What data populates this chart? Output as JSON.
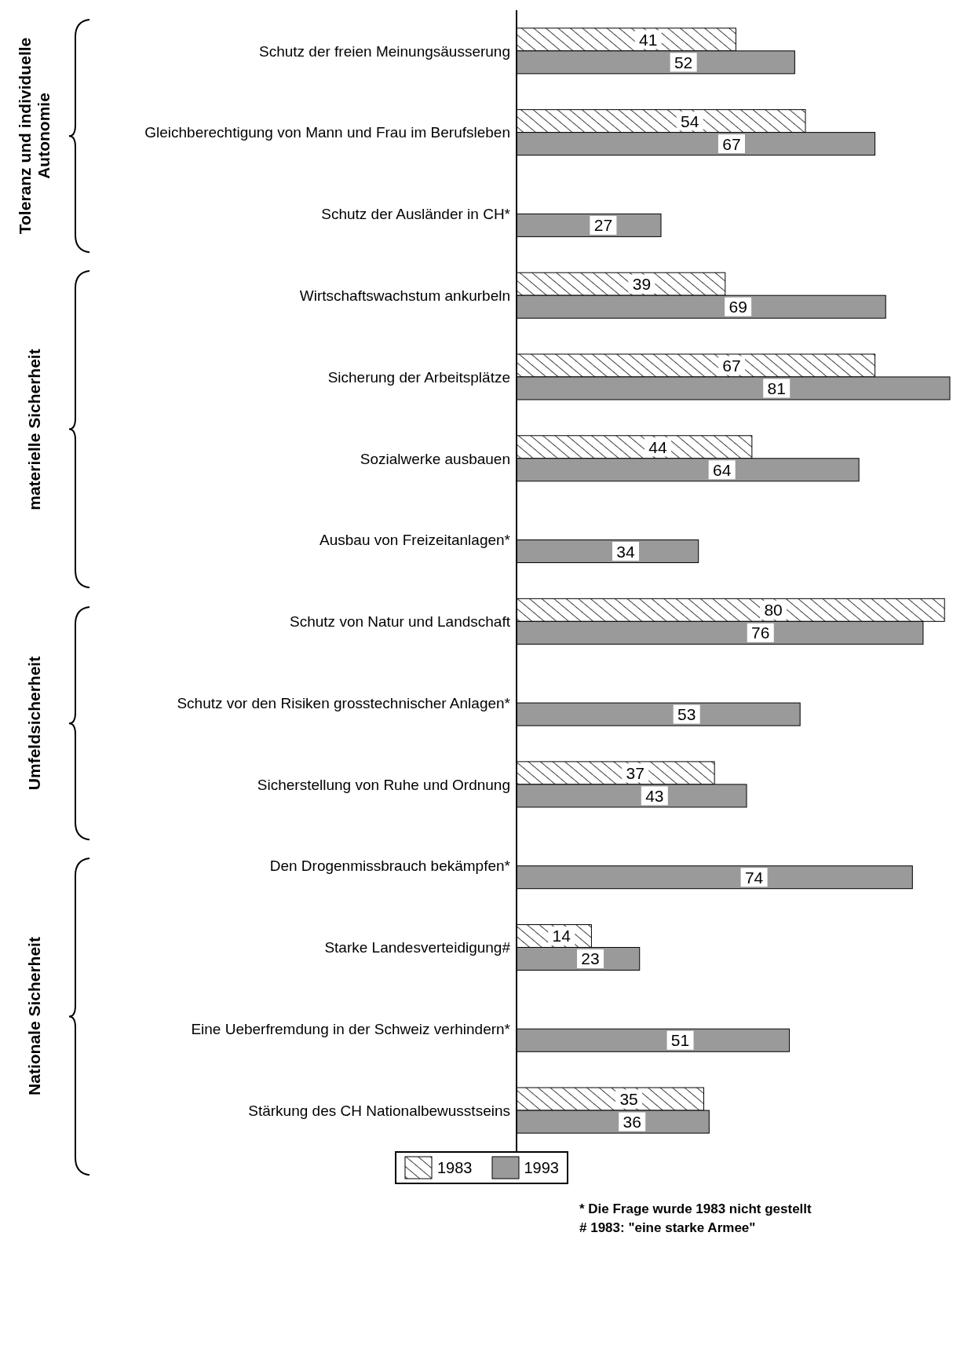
{
  "chart_data": {
    "type": "bar",
    "orientation": "horizontal",
    "categories": [
      "Schutz der freien Meinungsäusserung",
      "Gleichberechtigung von Mann und Frau im Berufsleben",
      "Schutz der Ausländer in CH*",
      "Wirtschaftswachstum ankurbeln",
      "Sicherung der Arbeitsplätze",
      "Sozialwerke ausbauen",
      "Ausbau von Freizeitanlagen*",
      "Schutz von Natur und Landschaft",
      "Schutz vor den Risiken grosstechnischer Anlagen*",
      "Sicherstellung von Ruhe und Ordnung",
      "Den Drogenmissbrauch bekämpfen*",
      "Starke Landesverteidigung#",
      "Eine Ueberfremdung in der Schweiz verhindern*",
      "Stärkung des CH Nationalbewusstseins"
    ],
    "series": [
      {
        "name": "1983",
        "color": "#ffffff",
        "values": [
          41,
          54,
          null,
          39,
          67,
          44,
          null,
          80,
          null,
          37,
          null,
          14,
          null,
          35
        ]
      },
      {
        "name": "1993",
        "color": "#9a9a9a",
        "values": [
          52,
          67,
          27,
          69,
          81,
          64,
          34,
          76,
          53,
          43,
          74,
          23,
          51,
          36
        ]
      }
    ],
    "data_labels": true,
    "legend": "bottom",
    "annotations": [
      "Toleranz und individuelle Autonomie",
      "materielle Sicherheit",
      "Umfeldsicherheit",
      "Nationale Sicherheit",
      "* Die Frage wurde 1983 nicht gestellt",
      "# 1983: \"eine starke Armee\""
    ]
  }
}
